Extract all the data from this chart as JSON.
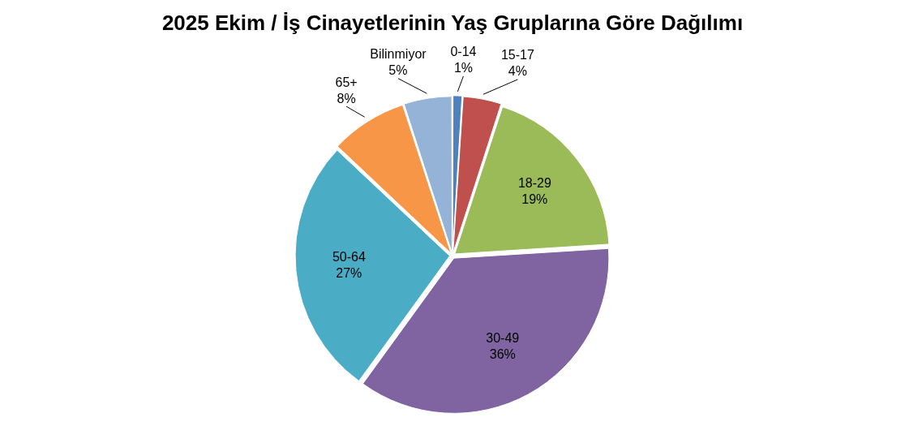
{
  "chart_data": {
    "type": "pie",
    "title": "2025 Ekim / İş Cinayetlerinin Yaş Gruplarına Göre Dağılımı",
    "categories": [
      "0-14",
      "15-17",
      "18-29",
      "30-49",
      "50-64",
      "65+",
      "Bilinmiyor"
    ],
    "values": [
      1,
      4,
      19,
      36,
      27,
      8,
      5
    ],
    "value_labels": [
      "1%",
      "4%",
      "19%",
      "36%",
      "27%",
      "8%",
      "5%"
    ],
    "colors": [
      "#4f81bd",
      "#c0504d",
      "#9bbb59",
      "#8064a2",
      "#4bacc6",
      "#f79646",
      "#95b3d7"
    ],
    "legend": false
  }
}
